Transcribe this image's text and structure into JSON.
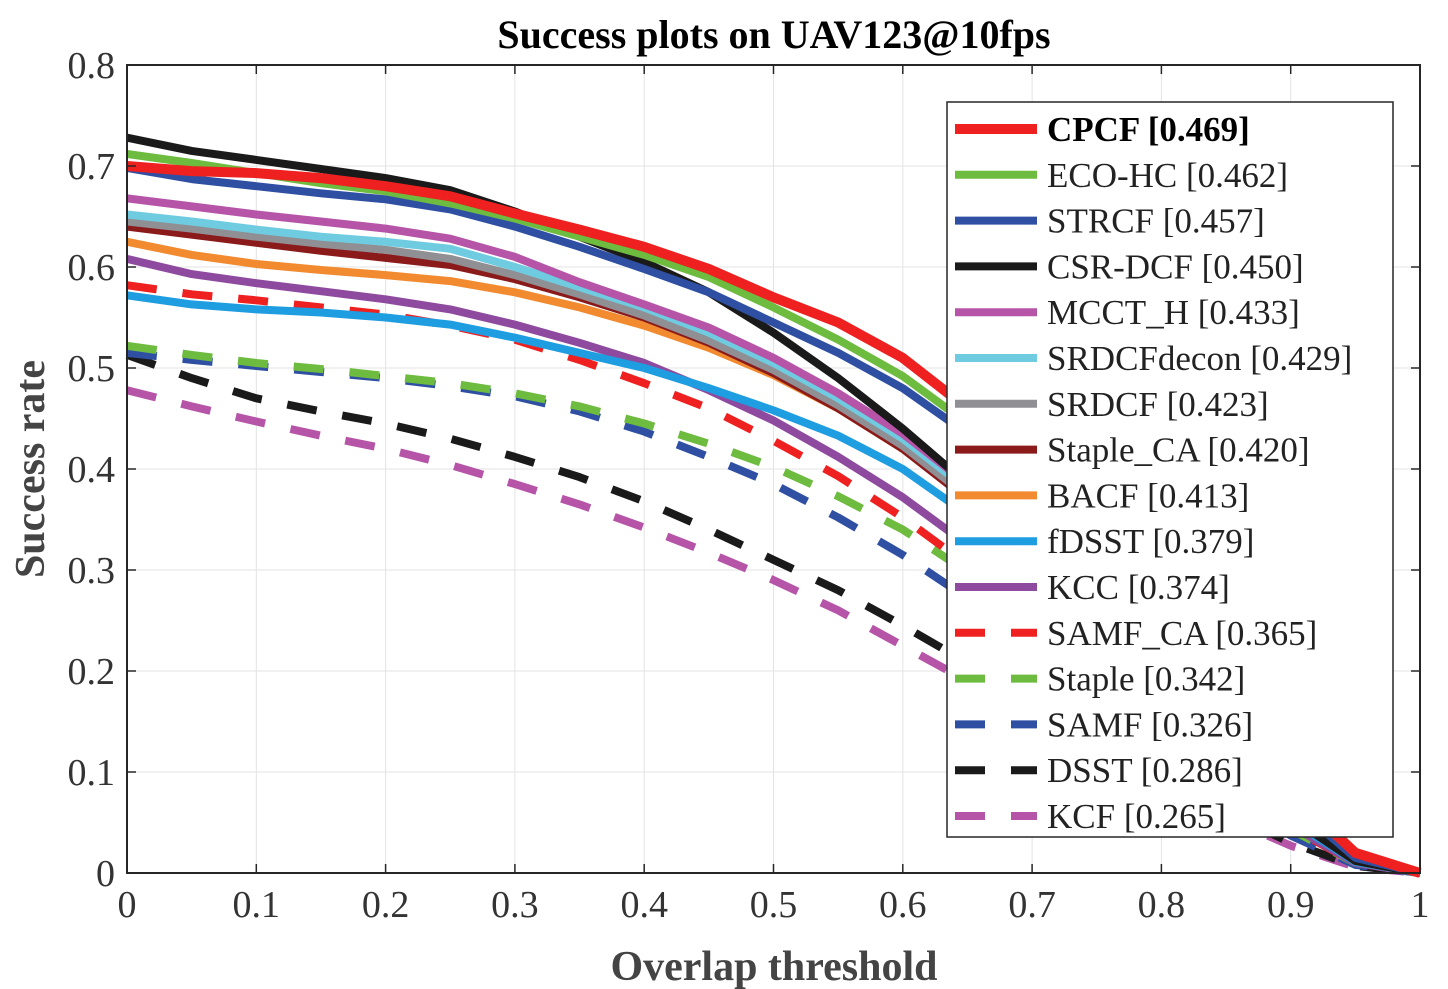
{
  "chart_data": {
    "type": "line",
    "title": "Success plots on UAV123@10fps",
    "xlabel": "Overlap threshold",
    "ylabel": "Success rate",
    "xlim": [
      0,
      1
    ],
    "ylim": [
      0,
      0.8
    ],
    "xticks": [
      "0",
      "0.1",
      "0.2",
      "0.3",
      "0.4",
      "0.5",
      "0.6",
      "0.7",
      "0.8",
      "0.9",
      "1"
    ],
    "yticks": [
      "0",
      "0.1",
      "0.2",
      "0.3",
      "0.4",
      "0.5",
      "0.6",
      "0.7",
      "0.8"
    ],
    "grid": true,
    "legend_position": "top-right",
    "x": [
      0,
      0.05,
      0.1,
      0.15,
      0.2,
      0.25,
      0.3,
      0.35,
      0.4,
      0.45,
      0.5,
      0.55,
      0.6,
      0.65,
      0.7,
      0.75,
      0.8,
      0.85,
      0.9,
      0.95,
      1
    ],
    "series": [
      {
        "name": "CPCF [0.469]",
        "color": "#ee2020",
        "style": "solid",
        "emphasis": true,
        "values": [
          0.7,
          0.695,
          0.693,
          0.688,
          0.68,
          0.67,
          0.653,
          0.637,
          0.62,
          0.598,
          0.57,
          0.545,
          0.51,
          0.46,
          0.4,
          0.33,
          0.25,
          0.16,
          0.08,
          0.02,
          0.0
        ]
      },
      {
        "name": "ECO-HC [0.462]",
        "color": "#6dbb3f",
        "style": "solid",
        "values": [
          0.712,
          0.703,
          0.693,
          0.683,
          0.675,
          0.663,
          0.648,
          0.63,
          0.612,
          0.59,
          0.56,
          0.528,
          0.492,
          0.445,
          0.385,
          0.315,
          0.235,
          0.15,
          0.075,
          0.02,
          0.0
        ]
      },
      {
        "name": "STRCF [0.457]",
        "color": "#2f4fa3",
        "style": "solid",
        "values": [
          0.698,
          0.687,
          0.68,
          0.673,
          0.667,
          0.657,
          0.64,
          0.62,
          0.598,
          0.575,
          0.545,
          0.515,
          0.48,
          0.435,
          0.375,
          0.31,
          0.23,
          0.145,
          0.07,
          0.015,
          0.0
        ]
      },
      {
        "name": "CSR-DCF [0.450]",
        "color": "#1a1a1a",
        "style": "solid",
        "values": [
          0.728,
          0.715,
          0.706,
          0.697,
          0.688,
          0.676,
          0.655,
          0.63,
          0.605,
          0.575,
          0.535,
          0.49,
          0.44,
          0.385,
          0.325,
          0.26,
          0.19,
          0.12,
          0.055,
          0.012,
          0.0
        ]
      },
      {
        "name": "MCCT_H [0.433]",
        "color": "#b655a8",
        "style": "solid",
        "values": [
          0.668,
          0.66,
          0.652,
          0.645,
          0.638,
          0.628,
          0.61,
          0.585,
          0.563,
          0.54,
          0.51,
          0.475,
          0.435,
          0.385,
          0.33,
          0.265,
          0.195,
          0.125,
          0.06,
          0.013,
          0.0
        ]
      },
      {
        "name": "SRDCFdecon [0.429]",
        "color": "#6fcbe0",
        "style": "solid",
        "values": [
          0.652,
          0.645,
          0.637,
          0.63,
          0.625,
          0.618,
          0.6,
          0.58,
          0.56,
          0.535,
          0.505,
          0.47,
          0.43,
          0.38,
          0.325,
          0.262,
          0.192,
          0.122,
          0.058,
          0.012,
          0.0
        ]
      },
      {
        "name": "SRDCF [0.423]",
        "color": "#8f8f94",
        "style": "solid",
        "values": [
          0.645,
          0.638,
          0.63,
          0.623,
          0.617,
          0.608,
          0.592,
          0.573,
          0.552,
          0.527,
          0.498,
          0.463,
          0.423,
          0.373,
          0.318,
          0.256,
          0.188,
          0.119,
          0.056,
          0.012,
          0.0
        ]
      },
      {
        "name": "Staple_CA [0.420]",
        "color": "#8b1a1a",
        "style": "solid",
        "values": [
          0.64,
          0.632,
          0.624,
          0.616,
          0.609,
          0.602,
          0.588,
          0.57,
          0.55,
          0.525,
          0.495,
          0.46,
          0.42,
          0.37,
          0.315,
          0.253,
          0.185,
          0.117,
          0.055,
          0.012,
          0.0
        ]
      },
      {
        "name": "BACF [0.413]",
        "color": "#f28a30",
        "style": "solid",
        "values": [
          0.625,
          0.612,
          0.603,
          0.597,
          0.592,
          0.586,
          0.575,
          0.56,
          0.542,
          0.52,
          0.493,
          0.46,
          0.42,
          0.372,
          0.318,
          0.256,
          0.188,
          0.119,
          0.056,
          0.012,
          0.0
        ]
      },
      {
        "name": "fDSST [0.379]",
        "color": "#1e9de0",
        "style": "solid",
        "values": [
          0.572,
          0.563,
          0.558,
          0.555,
          0.55,
          0.543,
          0.53,
          0.515,
          0.5,
          0.48,
          0.458,
          0.433,
          0.4,
          0.355,
          0.3,
          0.24,
          0.175,
          0.11,
          0.052,
          0.011,
          0.0
        ]
      },
      {
        "name": "KCC [0.374]",
        "color": "#8e4a9e",
        "style": "solid",
        "values": [
          0.608,
          0.593,
          0.584,
          0.576,
          0.568,
          0.558,
          0.543,
          0.525,
          0.505,
          0.478,
          0.448,
          0.412,
          0.372,
          0.325,
          0.275,
          0.22,
          0.16,
          0.1,
          0.047,
          0.01,
          0.0
        ]
      },
      {
        "name": "SAMF_CA [0.365]",
        "color": "#ee2020",
        "style": "dashed",
        "values": [
          0.582,
          0.573,
          0.567,
          0.56,
          0.553,
          0.542,
          0.528,
          0.508,
          0.485,
          0.46,
          0.428,
          0.393,
          0.352,
          0.305,
          0.255,
          0.2,
          0.145,
          0.092,
          0.045,
          0.01,
          0.0
        ]
      },
      {
        "name": "Staple [0.342]",
        "color": "#6dbb3f",
        "style": "dashed",
        "values": [
          0.522,
          0.513,
          0.505,
          0.499,
          0.492,
          0.485,
          0.475,
          0.462,
          0.445,
          0.425,
          0.402,
          0.373,
          0.34,
          0.298,
          0.25,
          0.198,
          0.143,
          0.09,
          0.043,
          0.01,
          0.0
        ]
      },
      {
        "name": "SAMF [0.326]",
        "color": "#2f4fa3",
        "style": "dashed",
        "values": [
          0.515,
          0.508,
          0.502,
          0.496,
          0.49,
          0.482,
          0.472,
          0.457,
          0.437,
          0.412,
          0.385,
          0.352,
          0.315,
          0.272,
          0.225,
          0.175,
          0.125,
          0.078,
          0.037,
          0.008,
          0.0
        ]
      },
      {
        "name": "DSST [0.286]",
        "color": "#1a1a1a",
        "style": "dashed",
        "values": [
          0.513,
          0.49,
          0.47,
          0.457,
          0.445,
          0.43,
          0.412,
          0.392,
          0.368,
          0.34,
          0.31,
          0.28,
          0.245,
          0.208,
          0.17,
          0.132,
          0.095,
          0.06,
          0.03,
          0.007,
          0.0
        ]
      },
      {
        "name": "KCF [0.265]",
        "color": "#b655a8",
        "style": "dashed",
        "values": [
          0.478,
          0.462,
          0.447,
          0.433,
          0.42,
          0.404,
          0.385,
          0.365,
          0.342,
          0.317,
          0.29,
          0.26,
          0.225,
          0.19,
          0.155,
          0.12,
          0.087,
          0.055,
          0.027,
          0.006,
          0.0
        ]
      }
    ]
  }
}
